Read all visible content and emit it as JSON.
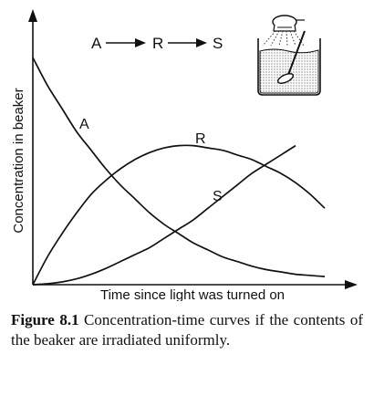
{
  "chart_data": {
    "type": "line",
    "title": "",
    "xlabel": "Time since light was turned on",
    "ylabel": "Concentration in beaker",
    "xlim": [
      0,
      10
    ],
    "ylim": [
      0,
      1
    ],
    "reaction": {
      "species": [
        "A",
        "R",
        "S"
      ],
      "arrow": "→"
    },
    "series": [
      {
        "name": "A",
        "x": [
          0,
          0.5,
          1,
          1.5,
          2,
          2.5,
          3,
          3.5,
          4,
          4.5,
          5,
          5.5,
          6,
          6.5,
          7,
          7.5,
          8,
          8.5,
          9,
          9.5,
          10
        ],
        "values": [
          0.98,
          0.86,
          0.76,
          0.66,
          0.58,
          0.5,
          0.43,
          0.37,
          0.31,
          0.26,
          0.22,
          0.18,
          0.15,
          0.12,
          0.1,
          0.08,
          0.065,
          0.055,
          0.045,
          0.04,
          0.035
        ]
      },
      {
        "name": "R",
        "x": [
          0,
          0.5,
          1,
          1.5,
          2,
          2.5,
          3,
          3.5,
          4,
          4.5,
          5,
          5.5,
          6,
          6.5,
          7,
          7.5,
          8,
          8.5,
          9,
          9.5,
          10
        ],
        "values": [
          0.0,
          0.12,
          0.22,
          0.31,
          0.39,
          0.45,
          0.5,
          0.54,
          0.57,
          0.59,
          0.6,
          0.6,
          0.59,
          0.58,
          0.56,
          0.54,
          0.51,
          0.48,
          0.44,
          0.39,
          0.33
        ]
      },
      {
        "name": "S",
        "x": [
          0,
          0.5,
          1,
          1.5,
          2,
          2.5,
          3,
          3.5,
          4,
          4.5,
          5,
          5.5,
          6,
          6.5,
          7,
          7.5,
          8,
          8.5,
          9
        ],
        "values": [
          0.0,
          0.004,
          0.012,
          0.025,
          0.045,
          0.07,
          0.1,
          0.13,
          0.16,
          0.2,
          0.24,
          0.28,
          0.33,
          0.38,
          0.43,
          0.48,
          0.52,
          0.56,
          0.6
        ]
      }
    ]
  },
  "caption": {
    "label": "Figure 8.1",
    "text": " Concentration-time curves if the contents of the beaker are irradiated uniformly."
  }
}
